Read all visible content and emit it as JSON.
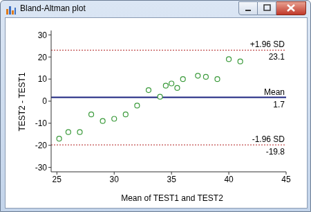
{
  "chart_data": {
    "type": "scatter",
    "title": "Bland-Altman plot",
    "x_label": "Mean of TEST1 and TEST2",
    "y_label": "TEST2 - TEST1",
    "x": [
      25.2,
      26,
      27,
      28,
      29,
      30,
      31,
      32,
      33,
      34,
      34.5,
      35,
      35.5,
      36,
      37.3,
      38,
      39,
      40,
      41
    ],
    "values": [
      -17,
      -14,
      -14,
      -6,
      -9,
      -8,
      -6,
      -2,
      5,
      2,
      7,
      8,
      6,
      10,
      11.5,
      11,
      10,
      19,
      18
    ],
    "color": "#3a9a3a",
    "marker": "circle",
    "xlim": [
      24.5,
      45
    ],
    "xticks": [
      25,
      30,
      35,
      40,
      45
    ],
    "ylim": [
      -32,
      32
    ],
    "yticks": [
      -30,
      -20,
      -10,
      0,
      10,
      20,
      30
    ],
    "grid": false,
    "reference_lines": [
      {
        "name": "+1.96 SD",
        "y": 23.1,
        "color": "#b22222",
        "line_style": "dotted"
      },
      {
        "name": "Mean",
        "y": 1.7,
        "color": "#1a237e",
        "line_style": "solid"
      },
      {
        "name": "-1.96 SD",
        "y": -19.8,
        "color": "#b22222",
        "line_style": "dotted"
      }
    ]
  }
}
